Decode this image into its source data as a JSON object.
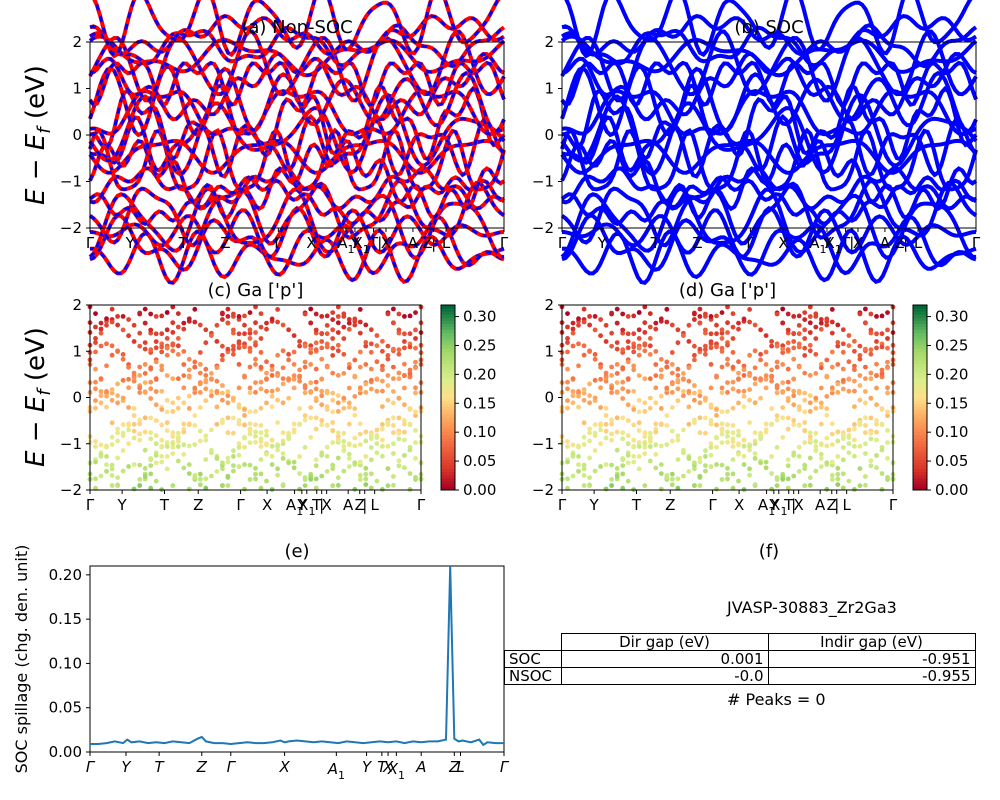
{
  "figure_id": "JVASP-30883_Zr2Ga3",
  "chart_data": [
    {
      "panel": "a",
      "type": "line",
      "title": "(a) Non-SOC",
      "ylabel": "$E-E_f$ (eV)",
      "ylim": [
        -2,
        2
      ],
      "yticks": [
        -2,
        -1,
        0,
        1,
        2
      ],
      "kpath_labels": [
        "Γ",
        "Y",
        "T",
        "Z",
        "Γ",
        "X",
        "A1",
        "Y",
        "X1",
        "T",
        "|",
        "X",
        "A",
        "Z",
        "|",
        "L",
        "Γ"
      ],
      "series": [
        {
          "color": "#ff0000",
          "style": "solid"
        },
        {
          "color": "#0000ff",
          "style": "dashed"
        }
      ]
    },
    {
      "panel": "b",
      "type": "line",
      "title": "(b) SOC",
      "ylim": [
        -2,
        2
      ],
      "yticks": [
        -2,
        -1,
        0,
        1,
        2
      ],
      "kpath_labels": [
        "Γ",
        "Y",
        "T",
        "Z",
        "Γ",
        "X",
        "A1",
        "Y",
        "X1",
        "T",
        "|",
        "X",
        "A",
        "Z",
        "|",
        "L",
        "Γ"
      ],
      "series": [
        {
          "color": "#0000ff",
          "style": "solid"
        }
      ]
    },
    {
      "panel": "c",
      "type": "scatter",
      "title": "(c)  Ga ['p']",
      "ylabel": "$E-E_f$ (eV)",
      "ylim": [
        -2,
        2
      ],
      "yticks": [
        -2,
        -1,
        0,
        1,
        2
      ],
      "colorbar": {
        "range": [
          0,
          0.32
        ],
        "ticks": [
          0.0,
          0.05,
          0.1,
          0.15,
          0.2,
          0.25,
          0.3
        ],
        "colormap": "RdYlGn"
      },
      "kpath_labels": [
        "Γ",
        "Y",
        "T",
        "Z",
        "Γ",
        "X",
        "A1",
        "Y",
        "X1",
        "T",
        "|",
        "X",
        "A",
        "Z",
        "|",
        "L",
        "Γ"
      ]
    },
    {
      "panel": "d",
      "type": "scatter",
      "title": "(d) Ga ['p']",
      "ylim": [
        -2,
        2
      ],
      "yticks": [
        -2,
        -1,
        0,
        1,
        2
      ],
      "colorbar": {
        "range": [
          0,
          0.32
        ],
        "ticks": [
          0.0,
          0.05,
          0.1,
          0.15,
          0.2,
          0.25,
          0.3
        ],
        "colormap": "RdYlGn"
      },
      "kpath_labels": [
        "Γ",
        "Y",
        "T",
        "Z",
        "Γ",
        "X",
        "A1",
        "Y",
        "X1",
        "T",
        "|",
        "X",
        "A",
        "Z",
        "|",
        "L",
        "Γ"
      ]
    },
    {
      "panel": "e",
      "type": "line",
      "title": "(e)",
      "ylabel": "SOC spillage (chg. den. unit)",
      "ylim": [
        0,
        0.21
      ],
      "yticks": [
        0.0,
        0.05,
        0.1,
        0.15,
        0.2
      ],
      "kpath_labels": [
        "Γ",
        "Y",
        "T",
        "Z",
        "Γ",
        "X",
        "A1",
        "Y",
        "T",
        "X",
        "X1",
        "A",
        "Z",
        "L",
        "Γ"
      ],
      "series": [
        {
          "color": "#1f77b4",
          "x": [
            0,
            0.02,
            0.04,
            0.06,
            0.08,
            0.09,
            0.1,
            0.12,
            0.14,
            0.16,
            0.18,
            0.2,
            0.22,
            0.24,
            0.26,
            0.27,
            0.28,
            0.3,
            0.32,
            0.34,
            0.36,
            0.38,
            0.4,
            0.42,
            0.44,
            0.46,
            0.47,
            0.48,
            0.5,
            0.52,
            0.54,
            0.56,
            0.58,
            0.6,
            0.62,
            0.64,
            0.66,
            0.68,
            0.7,
            0.72,
            0.74,
            0.76,
            0.78,
            0.8,
            0.82,
            0.84,
            0.86,
            0.87,
            0.88,
            0.89,
            0.9,
            0.92,
            0.94,
            0.95,
            0.96,
            0.98,
            1.0
          ],
          "values": [
            0.009,
            0.009,
            0.01,
            0.012,
            0.01,
            0.014,
            0.011,
            0.012,
            0.01,
            0.011,
            0.01,
            0.012,
            0.011,
            0.01,
            0.015,
            0.017,
            0.012,
            0.01,
            0.01,
            0.009,
            0.01,
            0.011,
            0.01,
            0.01,
            0.011,
            0.013,
            0.011,
            0.012,
            0.013,
            0.012,
            0.011,
            0.012,
            0.011,
            0.01,
            0.012,
            0.011,
            0.01,
            0.011,
            0.012,
            0.011,
            0.012,
            0.01,
            0.012,
            0.011,
            0.012,
            0.012,
            0.014,
            0.21,
            0.015,
            0.012,
            0.013,
            0.011,
            0.014,
            0.008,
            0.011,
            0.01,
            0.01
          ]
        }
      ]
    }
  ],
  "panel_f": {
    "title": "(f)",
    "name": "JVASP-30883_Zr2Ga3",
    "table": {
      "headers": [
        "",
        "Dir gap (eV)",
        "Indir gap (eV)"
      ],
      "rows": [
        [
          "SOC",
          "0.001",
          "-0.951"
        ],
        [
          "NSOC",
          "-0.0",
          "-0.955"
        ]
      ]
    },
    "peaks": "# Peaks = 0"
  }
}
